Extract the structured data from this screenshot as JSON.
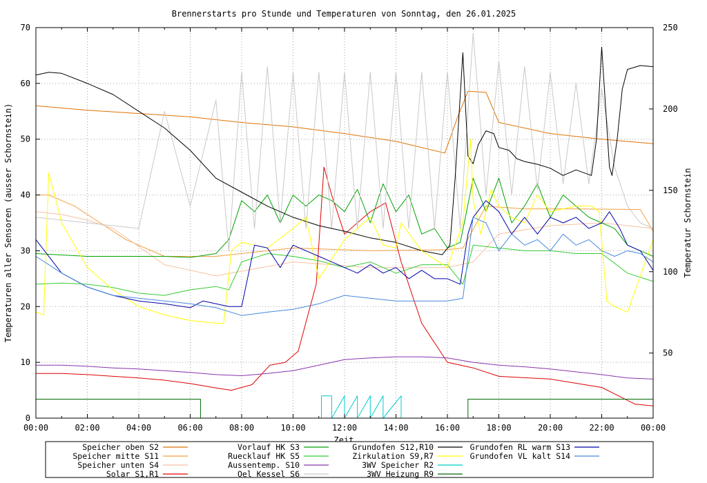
{
  "chart_data": {
    "type": "line",
    "title": "Brennerstarts pro Stunde und Temperaturen von Sonntag, den 26.01.2025",
    "xlabel": "Zeit",
    "ylabel": "Temperaturen aller Sensoren (ausser Schornstein)",
    "y2label": "Temperatur Schornstein",
    "y2label_color": "#ff55ff",
    "grid": true,
    "legend_position": "bottom",
    "xlim": [
      0,
      24
    ],
    "ylim": [
      0,
      70
    ],
    "y2lim": [
      10,
      250
    ],
    "xticks": [
      0,
      2,
      4,
      6,
      8,
      10,
      12,
      14,
      16,
      18,
      20,
      22,
      24
    ],
    "xtick_labels": [
      "00:00",
      "02:00",
      "04:00",
      "06:00",
      "08:00",
      "10:00",
      "12:00",
      "14:00",
      "16:00",
      "18:00",
      "20:00",
      "22:00",
      "00:00"
    ],
    "yticks": [
      0,
      10,
      20,
      30,
      40,
      50,
      60,
      70
    ],
    "ytick_labels": [
      "0",
      "10",
      "20",
      "30",
      "40",
      "50",
      "60",
      "70"
    ],
    "y2ticks": [
      50,
      100,
      150,
      200,
      250
    ],
    "y2tick_labels": [
      "50",
      "100",
      "150",
      "200",
      "250"
    ],
    "series": [
      {
        "name": "Speicher oben",
        "sensor": "S2",
        "color": "#e07000",
        "axis": "y",
        "x": [
          0,
          2,
          4,
          6,
          8,
          10,
          12,
          14,
          15.9,
          16.4,
          16.8,
          17.5,
          18,
          20,
          22,
          24
        ],
        "y": [
          56,
          55.2,
          54.6,
          54,
          53,
          52.2,
          51,
          49.6,
          47.5,
          54,
          58.6,
          58.4,
          53,
          51,
          50,
          49.2
        ]
      },
      {
        "name": "Speicher mitte",
        "sensor": "S11",
        "color": "#f0a040",
        "axis": "y",
        "x": [
          0,
          0.5,
          1.5,
          2.5,
          3.5,
          5,
          7,
          10,
          13,
          16,
          16.6,
          17.5,
          19,
          21,
          23.5,
          24
        ],
        "y": [
          40,
          40,
          38,
          35,
          32,
          29,
          29,
          30.5,
          30,
          30.2,
          30.5,
          38,
          37.5,
          37.5,
          37.4,
          33.5
        ]
      },
      {
        "name": "Speicher unten",
        "sensor": "S4",
        "color": "#f8c0a0",
        "axis": "y",
        "x": [
          0,
          1,
          2,
          3,
          5,
          7,
          10,
          13,
          16,
          17,
          18,
          20,
          22,
          24
        ],
        "y": [
          37,
          36.5,
          35.5,
          34,
          27.5,
          25.5,
          28,
          27,
          27,
          28,
          33,
          34.5,
          35,
          34
        ]
      },
      {
        "name": "Solar",
        "sensor": "S1,R1",
        "color": "#dd0000",
        "axis": "y",
        "x": [
          0,
          1,
          2,
          3,
          4,
          5,
          6,
          7,
          7.6,
          8.4,
          9.1,
          9.7,
          10.2,
          10.9,
          11.2,
          11.5,
          12,
          13,
          13.6,
          14.2,
          15,
          16,
          17,
          18,
          20,
          22,
          23.3,
          24
        ],
        "y": [
          8,
          8,
          7.8,
          7.5,
          7.2,
          6.8,
          6.2,
          5.4,
          5,
          6,
          9.5,
          10,
          12,
          24,
          45,
          40,
          33,
          37,
          38.6,
          28,
          17,
          10,
          9,
          7.5,
          7,
          5.5,
          2.5,
          2.2
        ]
      },
      {
        "name": "Vorlauf HK",
        "sensor": "S3",
        "color": "#00a000",
        "axis": "y",
        "x": [
          0,
          2,
          4,
          5,
          6,
          7,
          7.5,
          8,
          8.5,
          9,
          9.5,
          10,
          10.5,
          11,
          11.5,
          12,
          12.5,
          13,
          13.5,
          14,
          14.5,
          15,
          15.5,
          16,
          16.5,
          16.7,
          17,
          17.5,
          18,
          18.5,
          19,
          19.5,
          20,
          20.5,
          21,
          21.5,
          22,
          22.5,
          23,
          23.5,
          24
        ],
        "y": [
          29.5,
          29,
          29,
          29,
          28.8,
          29.5,
          32,
          39,
          37,
          40,
          35,
          40,
          38,
          40,
          39,
          37,
          41,
          35,
          42,
          37,
          40,
          33,
          34,
          30.5,
          31.5,
          36,
          43,
          37,
          43,
          35,
          38,
          42,
          36,
          40,
          38,
          36,
          35,
          34,
          31,
          30,
          29
        ]
      },
      {
        "name": "Ruecklauf HK",
        "sensor": "S5",
        "color": "#33cc33",
        "axis": "y",
        "x": [
          0,
          1,
          2,
          3,
          4,
          5,
          6,
          7,
          7.5,
          8,
          9,
          10,
          11,
          12,
          13,
          14,
          15,
          16,
          16.6,
          17,
          18,
          19,
          20,
          21,
          22,
          23,
          24
        ],
        "y": [
          24,
          24.2,
          24,
          23.4,
          22.4,
          22,
          23,
          23.6,
          23,
          28,
          29.5,
          29,
          28.2,
          27,
          28,
          26,
          27.5,
          27.5,
          24,
          31,
          30.5,
          30,
          30,
          29.5,
          29.5,
          26,
          24.5
        ]
      },
      {
        "name": "Aussentemp.",
        "sensor": "S10",
        "color": "#8833aa",
        "axis": "y",
        "x": [
          0,
          1,
          2,
          3,
          4,
          5,
          6,
          7,
          8,
          9,
          10,
          11,
          12,
          13,
          14,
          15,
          16,
          17,
          18,
          19,
          20,
          21,
          22,
          23,
          24
        ],
        "y": [
          9.5,
          9.5,
          9.3,
          9,
          8.8,
          8.5,
          8.2,
          7.8,
          7.6,
          8,
          8.5,
          9.5,
          10.5,
          10.8,
          11,
          11,
          10.8,
          10,
          9.5,
          9.2,
          8.8,
          8.3,
          7.8,
          7.2,
          7
        ]
      },
      {
        "name": "Oel Kessel",
        "sensor": "S6",
        "color": "#c8c8c8",
        "axis": "y",
        "x": [
          0,
          2,
          4,
          5,
          6,
          7,
          7.5,
          8,
          8.5,
          9,
          9.5,
          10,
          10.5,
          11,
          11.5,
          12,
          12.5,
          13,
          13.5,
          14,
          14.5,
          15,
          15.5,
          16,
          16.5,
          17,
          17.5,
          18,
          18.5,
          19,
          19.5,
          20,
          20.5,
          21,
          21.5,
          22,
          22.5,
          23,
          23.5,
          24
        ],
        "y": [
          36,
          35,
          34,
          55,
          38,
          57,
          30,
          62,
          34,
          63,
          35,
          62,
          34,
          62,
          34,
          62,
          34,
          62,
          34,
          62,
          34,
          62,
          34,
          62,
          34,
          69,
          40,
          64,
          40,
          63,
          41,
          62,
          42,
          60,
          42,
          59,
          45,
          38,
          35,
          34
        ]
      },
      {
        "name": "Grundofen",
        "sensor": "S12,R10",
        "color": "#000000",
        "axis": "y",
        "x": [
          0,
          0.5,
          1,
          2,
          3,
          4,
          5,
          6,
          7,
          8,
          9,
          10,
          11,
          12,
          13,
          14,
          15,
          15.8,
          16.1,
          16.3,
          16.6,
          16.8,
          17,
          17.2,
          17.5,
          17.8,
          18,
          18.4,
          18.7,
          19,
          19.5,
          20,
          20.5,
          21,
          21.6,
          21.8,
          22,
          22.3,
          22.4,
          22.6,
          22.8,
          23,
          23.5,
          24
        ],
        "y": [
          61.5,
          62,
          61.8,
          60,
          58,
          55,
          52,
          48,
          43,
          40.5,
          38,
          36,
          34.5,
          33.5,
          32.3,
          31.5,
          30,
          29.3,
          31,
          43,
          65.5,
          47,
          45.6,
          49,
          51.5,
          51,
          48.5,
          48,
          46.5,
          46,
          45.5,
          44.8,
          43.5,
          44.5,
          43.5,
          50,
          66.5,
          45,
          43.5,
          50,
          59,
          62.5,
          63.2,
          63
        ]
      },
      {
        "name": "Zirkulation",
        "sensor": "S9,R7",
        "color": "#ffff00",
        "axis": "y",
        "x": [
          0,
          0.3,
          0.5,
          1,
          2,
          3,
          4,
          5,
          6,
          7,
          7.3,
          7.6,
          8,
          9,
          10,
          10.5,
          11,
          12,
          13,
          13.5,
          14,
          14.2,
          15,
          16,
          16.6,
          16.9,
          17,
          17.3,
          17.7,
          18,
          18.5,
          19,
          19.5,
          20,
          21,
          21.6,
          21.9,
          22.2,
          22.5,
          23,
          24
        ],
        "y": [
          19,
          18.5,
          44,
          35,
          27,
          23,
          20,
          18.5,
          17.5,
          17,
          17,
          30,
          31.5,
          30.5,
          34,
          36,
          25,
          32,
          36,
          31,
          30.5,
          35,
          30,
          27,
          35,
          50,
          39,
          33,
          41,
          38,
          36,
          35,
          40,
          37,
          38,
          38,
          37,
          21,
          20,
          19,
          32
        ]
      },
      {
        "name": "3WV Speicher",
        "sensor": "R2",
        "color": "#00cccc",
        "axis": "y",
        "x": [
          0,
          11.1,
          11.1,
          11.5,
          11.5,
          12,
          12,
          12.5,
          12.5,
          13,
          13,
          13.5,
          13.5,
          14.2,
          14.2,
          24
        ],
        "y": [
          0,
          0,
          4,
          4,
          0,
          4,
          0,
          4,
          0,
          4,
          0,
          4,
          0,
          4,
          0,
          0
        ]
      },
      {
        "name": "3WV Heizung",
        "sensor": "R9",
        "color": "#006600",
        "axis": "y",
        "x": [
          0,
          6.4,
          6.4,
          16.8,
          16.8,
          24
        ],
        "y": [
          3.4,
          3.4,
          0,
          0,
          3.4,
          3.4
        ]
      },
      {
        "name": "Grundofen RL warm",
        "sensor": "S13",
        "color": "#0000aa",
        "axis": "y",
        "x": [
          0,
          1,
          2,
          3,
          4,
          5,
          6,
          6.5,
          7,
          7.5,
          8,
          8.5,
          9,
          9.5,
          10,
          10.5,
          11,
          11.5,
          12,
          12.5,
          13,
          13.5,
          14,
          14.5,
          15,
          15.5,
          16,
          16.5,
          16.8,
          17,
          17.5,
          18,
          18.5,
          19,
          19.5,
          20,
          20.5,
          21,
          21.5,
          22,
          22.3,
          22.7,
          23,
          23.5,
          24
        ],
        "y": [
          32,
          26,
          23.5,
          22,
          21,
          20.5,
          19.8,
          21,
          20.5,
          20,
          20,
          31,
          30.5,
          27,
          31,
          30,
          29,
          28,
          27,
          26,
          27.5,
          26,
          27,
          25,
          26.5,
          25,
          25,
          24,
          33,
          36,
          39,
          37,
          33,
          36,
          33,
          36,
          35,
          36,
          34,
          35,
          37,
          34,
          31,
          30,
          26.5
        ]
      },
      {
        "name": "Grundofen VL kalt",
        "sensor": "S14",
        "color": "#4488dd",
        "axis": "y",
        "x": [
          0,
          1,
          2,
          3,
          4,
          5,
          6,
          7,
          8,
          9,
          10,
          11,
          12,
          13,
          14,
          15,
          16,
          16.6,
          17,
          17.5,
          18,
          18.5,
          19,
          19.5,
          20,
          20.5,
          21,
          21.5,
          22,
          22.5,
          23,
          23.5,
          24
        ],
        "y": [
          29,
          26,
          23.5,
          22,
          21.5,
          21,
          20.5,
          19.8,
          18.4,
          19,
          19.5,
          20.5,
          22,
          21.5,
          21,
          21,
          21,
          21.5,
          36,
          35,
          30,
          33,
          31,
          32,
          30,
          33,
          31,
          32,
          30,
          29,
          30,
          29.5,
          28
        ]
      }
    ]
  },
  "legend": [
    {
      "label": "Speicher oben  S2",
      "color": "#e07000"
    },
    {
      "label": "Speicher mitte S11",
      "color": "#f0a040"
    },
    {
      "label": "Speicher unten S4",
      "color": "#f8c0a0"
    },
    {
      "label": "Solar        S1,R1",
      "color": "#dd0000"
    },
    {
      "label": "Vorlauf HK     S3",
      "color": "#00a000"
    },
    {
      "label": "Ruecklauf HK   S5",
      "color": "#33cc33"
    },
    {
      "label": "Aussentemp.   S10",
      "color": "#8833aa"
    },
    {
      "label": "Oel Kessel     S6",
      "color": "#c8c8c8"
    },
    {
      "label": "Grundofen     S12,R10",
      "color": "#000000"
    },
    {
      "label": "Zirkulation    S9,R7",
      "color": "#ffff00"
    },
    {
      "label": "3WV Speicher      R2",
      "color": "#00cccc"
    },
    {
      "label": "3WV Heizung   R9",
      "color": "#006600"
    },
    {
      "label": "Grundofen RL warm  S13",
      "color": "#0000aa"
    },
    {
      "label": "Grundofen VL kalt  S14",
      "color": "#4488dd"
    }
  ]
}
